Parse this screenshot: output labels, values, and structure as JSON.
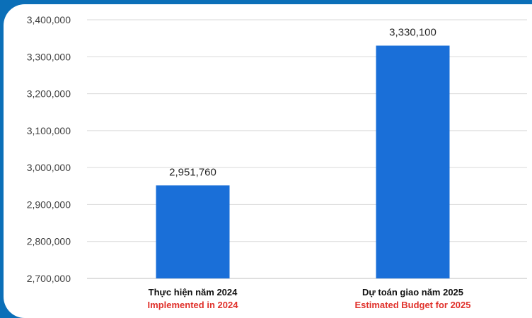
{
  "chart_data": {
    "type": "bar",
    "categories": [
      {
        "label": "Thực hiện năm 2024",
        "sublabel": "Implemented in 2024"
      },
      {
        "label": "Dự toán giao năm 2025",
        "sublabel": "Estimated Budget for 2025"
      }
    ],
    "values": [
      2951760,
      3330100
    ],
    "data_labels": [
      "2,951,760",
      "3,330,100"
    ],
    "ylim": [
      2700000,
      3400000
    ],
    "yticks": [
      2700000,
      2800000,
      2900000,
      3000000,
      3100000,
      3200000,
      3300000,
      3400000
    ],
    "ytick_labels": [
      "2,700,000",
      "2,800,000",
      "2,900,000",
      "3,000,000",
      "3,100,000",
      "3,200,000",
      "3,300,000",
      "3,400,000"
    ],
    "grid": true,
    "legend": "none",
    "bar_color": "#1a6fd8",
    "sublabel_color": "#e0312b",
    "frame_color": "#0b6fb8"
  }
}
